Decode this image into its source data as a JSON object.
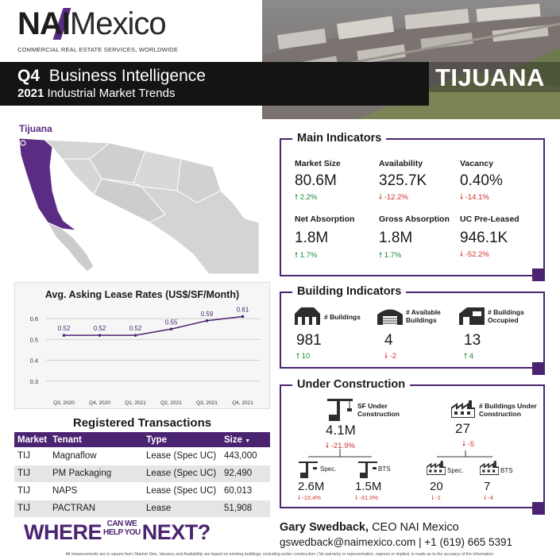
{
  "header": {
    "logo_nai": "NAI",
    "logo_mexico": "Mexico",
    "logo_tagline": "COMMERCIAL REAL ESTATE SERVICES, WORLDWIDE",
    "quarter": "Q4",
    "report_title": "Business Intelligence",
    "year": "2021",
    "report_subtitle": "Industrial Market Trends",
    "city": "TIJUANA"
  },
  "map": {
    "label": "Tijuana",
    "highlight_color": "#5b2c83"
  },
  "chart_data": {
    "type": "line",
    "title": "Avg. Asking Lease Rates (US$/SF/Month)",
    "categories": [
      "Q3, 2020",
      "Q4, 2020",
      "Q1, 2021",
      "Q2, 2021",
      "Q3, 2021",
      "Q4, 2021"
    ],
    "values": [
      0.52,
      0.52,
      0.52,
      0.55,
      0.59,
      0.61
    ],
    "value_labels": [
      "0.52",
      "0.52",
      "0.52",
      "0.55",
      "0.59",
      "0.61"
    ],
    "yticks": [
      "0.6",
      "0.5",
      "0.4",
      "0.3"
    ],
    "ylim": [
      0.25,
      0.65
    ],
    "grid": true,
    "color": "#4b2471"
  },
  "transactions": {
    "title": "Registered Transactions",
    "headers": [
      "Market",
      "Tenant",
      "Type",
      "Size"
    ],
    "rows": [
      [
        "TIJ",
        "Magnaflow",
        "Lease (Spec UC)",
        "443,000"
      ],
      [
        "TIJ",
        "PM Packaging",
        "Lease (Spec UC)",
        "92,490"
      ],
      [
        "TIJ",
        "NAPS",
        "Lease (Spec UC)",
        "60,013"
      ],
      [
        "TIJ",
        "PACTRAN",
        "Lease",
        "51,908"
      ]
    ]
  },
  "where_banner": {
    "part1": "WHERE",
    "small1": "CAN WE",
    "small2": "HELP YOU",
    "part2": "NEXT?"
  },
  "main_indicators": {
    "title": "Main Indicators",
    "items": [
      {
        "label": "Market Size",
        "value": "80.6M",
        "change": "2.2%",
        "dir": "up"
      },
      {
        "label": "Availability",
        "value": "325.7K",
        "change": "-12.2%",
        "dir": "down"
      },
      {
        "label": "Vacancy",
        "value": "0.40%",
        "change": "-14.1%",
        "dir": "down"
      },
      {
        "label": "Net Absorption",
        "value": "1.8M",
        "change": "1.7%",
        "dir": "up"
      },
      {
        "label": "Gross Absorption",
        "value": "1.8M",
        "change": "1.7%",
        "dir": "up"
      },
      {
        "label": "UC Pre-Leased",
        "value": "946.1K",
        "change": "-52.2%",
        "dir": "down"
      }
    ]
  },
  "building_indicators": {
    "title": "Building Indicators",
    "items": [
      {
        "label": "# Buildings",
        "value": "981",
        "change": "10",
        "dir": "up",
        "icon": "building-icon"
      },
      {
        "label": "# Available Buildings",
        "value": "4",
        "change": "-2",
        "dir": "down",
        "icon": "warehouse-icon"
      },
      {
        "label": "# Buildings Occupied",
        "value": "13",
        "change": "4",
        "dir": "up",
        "icon": "occupied-building-icon"
      }
    ]
  },
  "under_construction": {
    "title": "Under Construction",
    "sf_label": "SF Under Construction",
    "sf_value": "4.1M",
    "sf_change": "-21.9%",
    "bld_label": "# Buildings Under Construction",
    "bld_value": "27",
    "bld_change": "-5",
    "spec_label": "Spec.",
    "bts_label": "BTS",
    "sf_spec_value": "2.6M",
    "sf_spec_change": "-15.4%",
    "sf_bts_value": "1.5M",
    "sf_bts_change": "-31.0%",
    "bld_spec_value": "20",
    "bld_spec_change": "-1",
    "bld_bts_value": "7",
    "bld_bts_change": "-4"
  },
  "contact": {
    "name": "Gary Swedback,",
    "role": "CEO NAI Mexico",
    "email": "gswedback@naimexico.com",
    "phone": "+1 (619) 665 5391"
  },
  "footer": "All measurements are in square feet | Market Size, Vacancy and Availability are based on existing buildings, excluding under construction | No warranty or representation, express or implied, is made as to the accuracy of the information."
}
